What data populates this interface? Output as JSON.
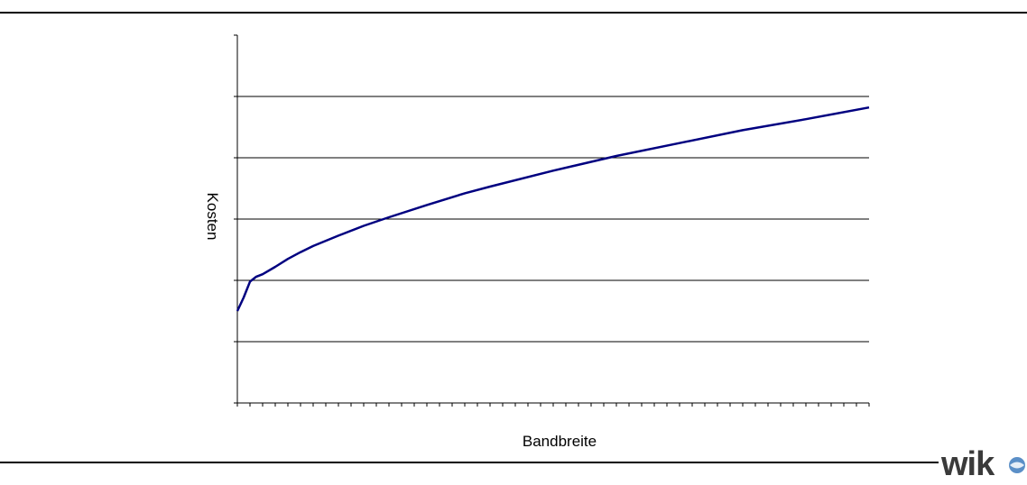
{
  "chart_data": {
    "type": "line",
    "xlabel": "Bandbreite",
    "ylabel": "Kosten",
    "xlim": [
      0,
      50
    ],
    "ylim": [
      0,
      6
    ],
    "y_gridlines": [
      1,
      2,
      3,
      4,
      5
    ],
    "x_minor_ticks": 50,
    "grid": "horizontal",
    "series": [
      {
        "color": "#000080",
        "x": [
          0,
          0.5,
          1,
          1.5,
          2,
          3,
          4,
          5,
          6,
          8,
          10,
          12,
          15,
          18,
          20,
          25,
          30,
          35,
          40,
          45,
          50
        ],
        "y": [
          1.5,
          1.72,
          1.98,
          2.06,
          2.1,
          2.22,
          2.35,
          2.46,
          2.56,
          2.73,
          2.89,
          3.03,
          3.23,
          3.42,
          3.53,
          3.79,
          4.03,
          4.24,
          4.45,
          4.63,
          4.82
        ]
      }
    ]
  },
  "logo": {
    "text": "wik"
  }
}
